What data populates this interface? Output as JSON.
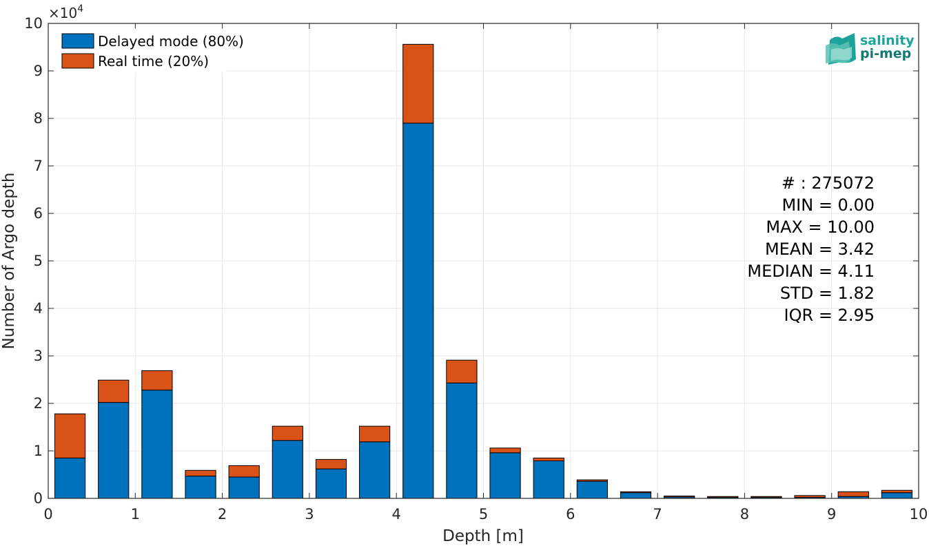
{
  "chart_data": {
    "type": "bar",
    "stacked": true,
    "xlabel": "Depth [m]",
    "ylabel": "Number of Argo depth",
    "y_multiplier": "×10",
    "y_multiplier_exp": "4",
    "xlim": [
      0,
      10
    ],
    "ylim": [
      0,
      10
    ],
    "xticks": [
      "0",
      "1",
      "2",
      "3",
      "4",
      "5",
      "6",
      "7",
      "8",
      "9",
      "10"
    ],
    "yticks": [
      "0",
      "1",
      "2",
      "3",
      "4",
      "5",
      "6",
      "7",
      "8",
      "9",
      "10"
    ],
    "grid": true,
    "legend_position": "top-left",
    "x": [
      0.25,
      0.75,
      1.25,
      1.75,
      2.25,
      2.75,
      3.25,
      3.75,
      4.25,
      4.75,
      5.25,
      5.75,
      6.25,
      6.75,
      7.25,
      7.75,
      8.25,
      8.75,
      9.25,
      9.75
    ],
    "series": [
      {
        "name": "Delayed mode (80%)",
        "color": "#0072BD",
        "values": [
          0.85,
          2.02,
          2.28,
          0.47,
          0.45,
          1.22,
          0.62,
          1.19,
          7.9,
          2.43,
          0.96,
          0.79,
          0.36,
          0.12,
          0.03,
          0.02,
          0.02,
          0.02,
          0.04,
          0.12
        ]
      },
      {
        "name": "Real time (20%)",
        "color": "#D95319",
        "values": [
          0.93,
          0.47,
          0.41,
          0.12,
          0.24,
          0.3,
          0.2,
          0.33,
          1.66,
          0.48,
          0.1,
          0.06,
          0.03,
          0.02,
          0.02,
          0.02,
          0.02,
          0.04,
          0.1,
          0.05
        ]
      }
    ],
    "stats": [
      "# : 275072",
      "MIN = 0.00",
      "MAX =  10.00",
      "MEAN = 3.42",
      "MEDIAN = 4.11",
      "STD = 1.82",
      "IQR = 2.95"
    ]
  },
  "logo": {
    "line1": "salinity",
    "line2": "pi-mep",
    "color": "#1ea39a"
  }
}
